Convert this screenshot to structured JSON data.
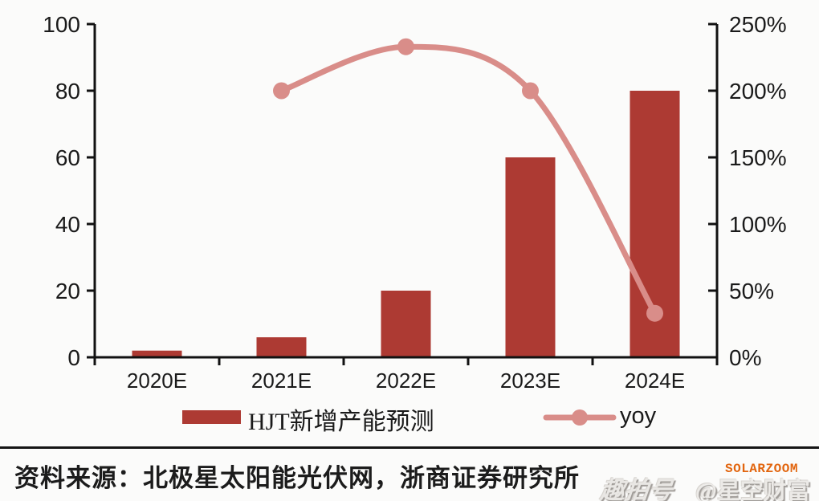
{
  "chart_data": {
    "type": "combo_bar_line",
    "title": "",
    "categories": [
      "2020E",
      "2021E",
      "2022E",
      "2023E",
      "2024E"
    ],
    "series": [
      {
        "name": "HJT新增产能预测",
        "type": "bar",
        "axis": "left",
        "color": "#ad3a33",
        "values": [
          2,
          6,
          20,
          60,
          80
        ]
      },
      {
        "name": "yoy",
        "type": "line",
        "axis": "right",
        "color": "#d98d89",
        "unit": "%",
        "values": [
          null,
          200,
          233,
          200,
          33
        ]
      }
    ],
    "left_axis": {
      "min": 0,
      "max": 100,
      "tick_labels": [
        "0",
        "20",
        "40",
        "60",
        "80",
        "100"
      ]
    },
    "right_axis": {
      "min": 0,
      "max": 250,
      "tick_labels": [
        "0%",
        "50%",
        "100%",
        "150%",
        "200%",
        "250%"
      ]
    },
    "grid": false,
    "legend_position": "bottom"
  },
  "footer": {
    "source": "资料来源：北极星太阳能光伏网，浙商证券研究所"
  },
  "watermarks": {
    "platform": "趣拍号",
    "handle": "@星空财富",
    "brand": "SOLARZOOM"
  },
  "colors": {
    "bar": "#ad3a33",
    "line": "#d98d89",
    "axis": "#111111",
    "text": "#1a1a1a",
    "background": "#fbfbfa",
    "brand": "#e2650e"
  }
}
